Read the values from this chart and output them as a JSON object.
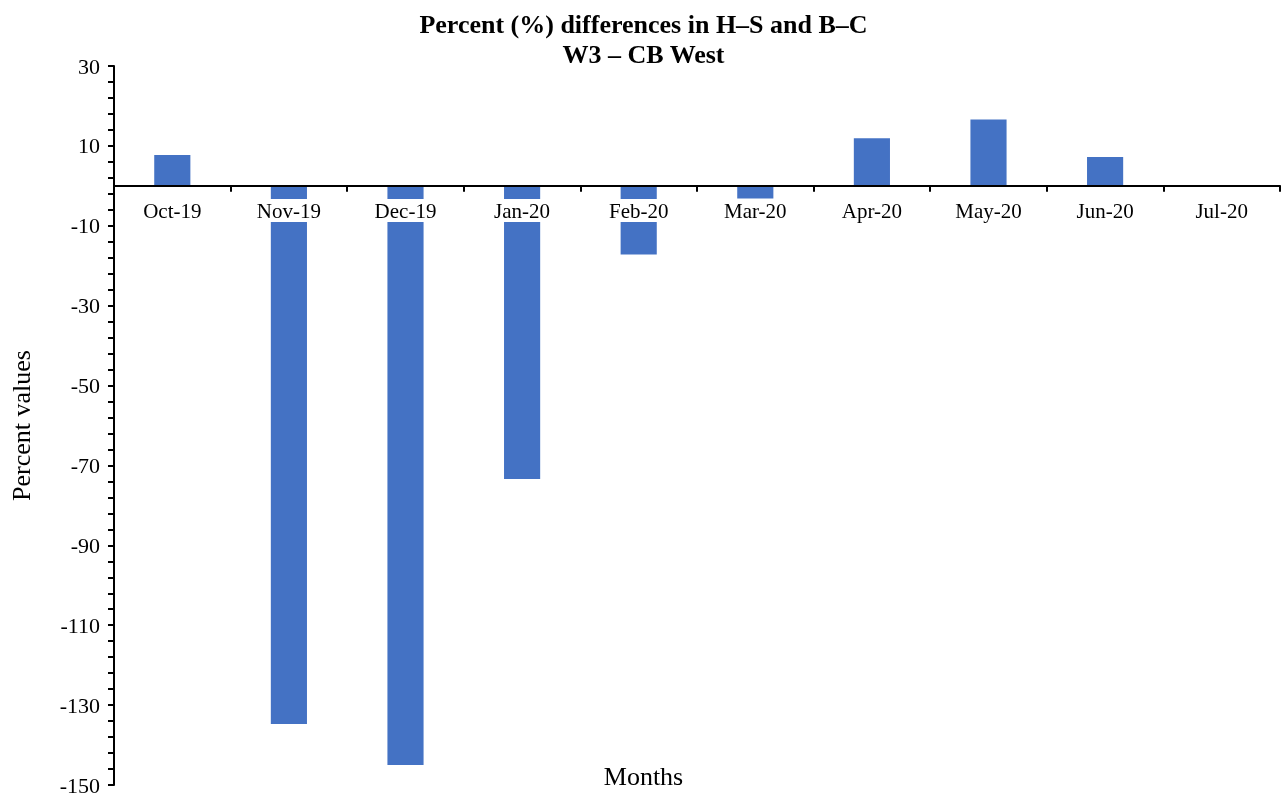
{
  "chart_data": {
    "type": "bar",
    "title": "Percent (%) differences in H–S and B–C\nW3 – CB West",
    "xlabel": "Months",
    "ylabel": "Percent values",
    "categories": [
      "Oct-19",
      "Nov-19",
      "Dec-19",
      "Jan-20",
      "Feb-20",
      "Mar-20",
      "Apr-20",
      "May-20",
      "Jun-20",
      "Jul-20"
    ],
    "values": [
      7.7,
      -134.7,
      -145,
      -73.4,
      -17.2,
      -3.2,
      11.9,
      16.6,
      7.2,
      0
    ],
    "color": "#4472c4",
    "ylim": [
      -150,
      30
    ],
    "yticks": [
      -150,
      -130,
      -110,
      -90,
      -70,
      -50,
      -30,
      -10,
      10,
      30
    ],
    "grid": false
  }
}
